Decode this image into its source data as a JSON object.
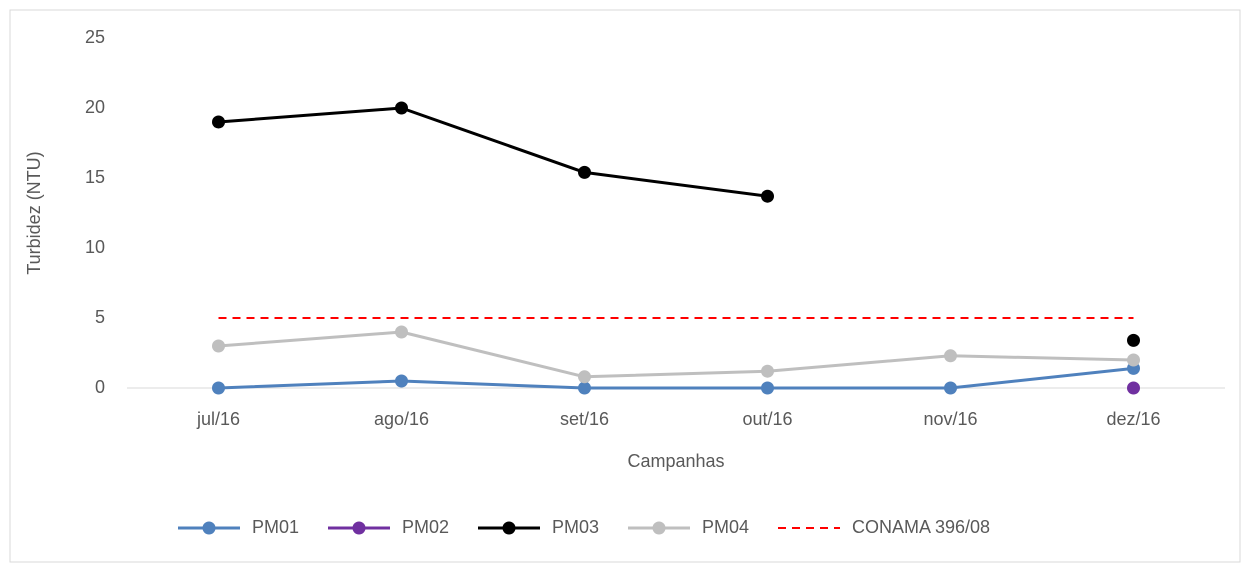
{
  "chart_data": {
    "type": "line",
    "y_label": "Turbidez (NTU)",
    "x_label": "Campanhas",
    "categories": [
      "jul/16",
      "ago/16",
      "set/16",
      "out/16",
      "nov/16",
      "dez/16"
    ],
    "series": [
      {
        "name": "PM01",
        "color": "#4f81bd",
        "values": [
          0,
          0.5,
          0,
          0,
          0,
          1.4
        ]
      },
      {
        "name": "PM02",
        "color": "#7030a0",
        "values": [
          null,
          null,
          null,
          null,
          null,
          0
        ]
      },
      {
        "name": "PM03",
        "color": "#000000",
        "values": [
          19,
          20,
          15.4,
          13.7,
          null,
          3.4
        ]
      },
      {
        "name": "PM04",
        "color": "#bfbfbf",
        "values": [
          3,
          4,
          0.8,
          1.2,
          2.3,
          2
        ]
      },
      {
        "name": "CONAMA 396/08",
        "color": "#ff0000",
        "values": [
          5,
          5,
          5,
          5,
          5,
          5
        ],
        "dashed": true,
        "markers": false
      }
    ],
    "ylim": [
      0,
      25
    ],
    "yticks": [
      0,
      5,
      10,
      15,
      20,
      25
    ],
    "grid": false,
    "legend": "bottom"
  }
}
